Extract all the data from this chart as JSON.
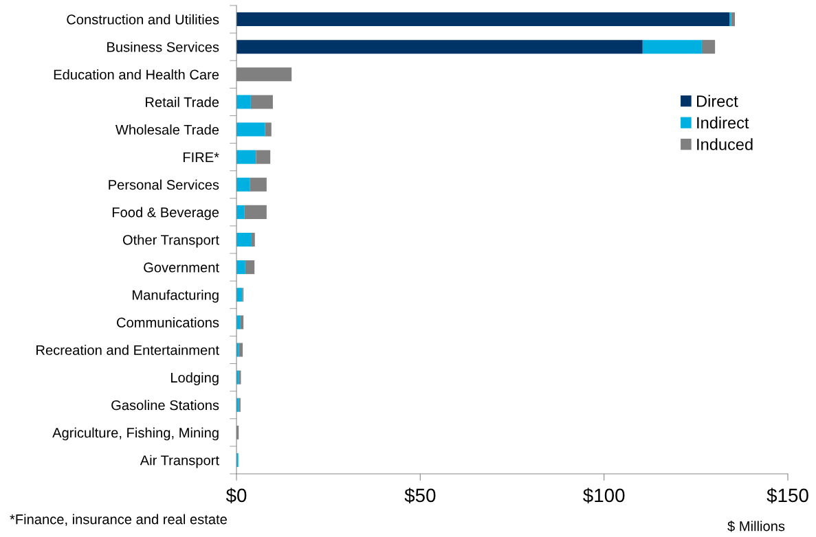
{
  "chart_data": {
    "type": "bar",
    "orientation": "horizontal",
    "stacked": true,
    "categories": [
      "Construction and Utilities",
      "Business Services",
      "Education and Health Care",
      "Retail Trade",
      "Wholesale Trade",
      "FIRE*",
      "Personal Services",
      "Food & Beverage",
      "Other Transport",
      "Government",
      "Manufacturing",
      "Communications",
      "Recreation and Entertainment",
      "Lodging",
      "Gasoline Stations",
      "Agriculture, Fishing, Mining",
      "Air Transport"
    ],
    "series": [
      {
        "name": "Direct",
        "color": "#003366",
        "values": [
          134.2,
          110.5,
          0,
          0,
          0,
          0,
          0,
          0,
          0,
          0,
          0,
          0,
          0,
          0,
          0,
          0,
          0
        ]
      },
      {
        "name": "Indirect",
        "color": "#00b0e0",
        "values": [
          0.4,
          16.1,
          0,
          3.9,
          7.8,
          5.3,
          3.7,
          2.1,
          4.1,
          2.4,
          1.6,
          1.1,
          0.7,
          0.6,
          0.7,
          null,
          0.5
        ]
      },
      {
        "name": "Induced",
        "color": "#808080",
        "values": [
          1.0,
          3.6,
          15.0,
          6.0,
          1.7,
          3.9,
          4.5,
          6.1,
          0.9,
          2.5,
          0.3,
          0.8,
          1.0,
          0.6,
          0.4,
          0.6,
          null
        ]
      }
    ],
    "xlim": [
      0,
      150
    ],
    "xticks": [
      {
        "value": 0,
        "label": "$0"
      },
      {
        "value": 50,
        "label": "$50"
      },
      {
        "value": 100,
        "label": "$100"
      },
      {
        "value": 150,
        "label": "$150"
      }
    ],
    "xlabel": "$ Millions",
    "annotations": [
      "*Finance, insurance and real estate"
    ],
    "legend": "right",
    "grid": false
  }
}
